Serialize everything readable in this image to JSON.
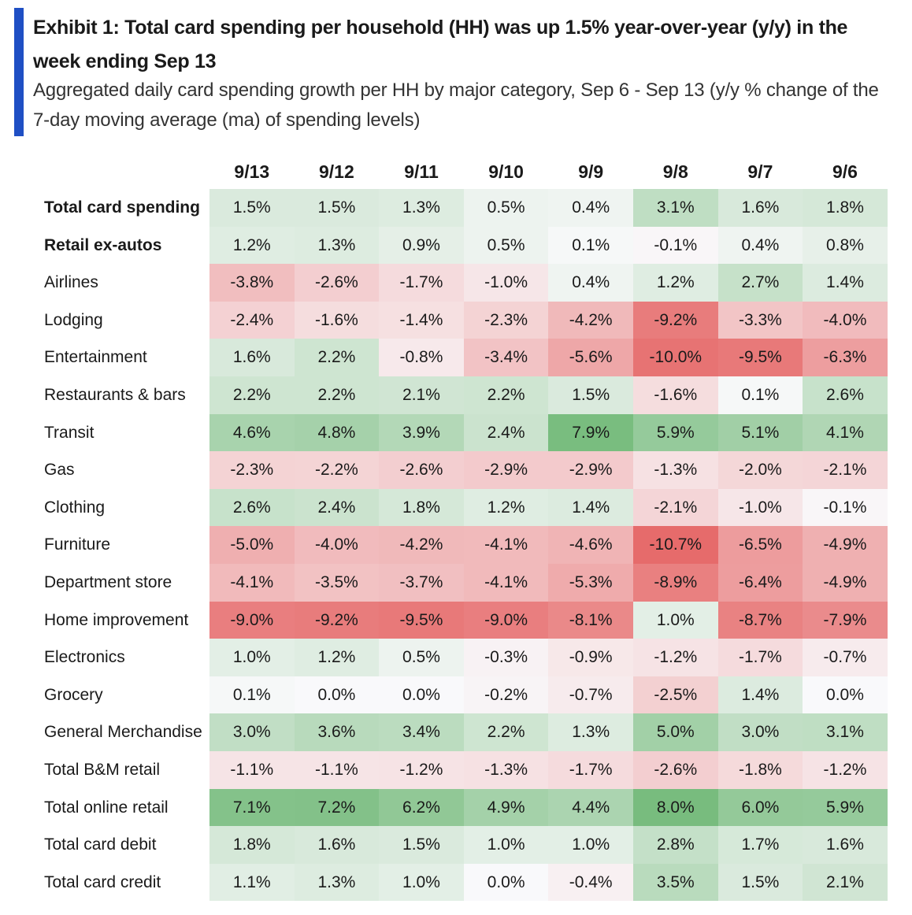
{
  "header": {
    "title": "Exhibit 1: Total card spending per household (HH) was up 1.5% year-over-year (y/y) in the week ending Sep 13",
    "subtitle": "Aggregated daily card spending growth per HH by major category, Sep 6 - Sep 13 (y/y % change of the 7-day moving average (ma) of spending levels)"
  },
  "colors": {
    "accent": "#1f4fc4",
    "positive": "#78bc7e",
    "negative": "#e66b6b",
    "neutral": "#f9f9fb"
  },
  "chart_data": {
    "type": "heatmap",
    "title": "Exhibit 1: Total card spending per household (HH) was up 1.5% year-over-year (y/y) in the week ending Sep 13",
    "columns": [
      "9/13",
      "9/12",
      "9/11",
      "9/10",
      "9/9",
      "9/8",
      "9/7",
      "9/6"
    ],
    "rows": [
      {
        "label": "Total card spending",
        "bold": true,
        "values": [
          1.5,
          1.5,
          1.3,
          0.5,
          0.4,
          3.1,
          1.6,
          1.8
        ]
      },
      {
        "label": "Retail ex-autos",
        "bold": true,
        "values": [
          1.2,
          1.3,
          0.9,
          0.5,
          0.1,
          -0.1,
          0.4,
          0.8
        ]
      },
      {
        "label": "Airlines",
        "values": [
          -3.8,
          -2.6,
          -1.7,
          -1.0,
          0.4,
          1.2,
          2.7,
          1.4
        ]
      },
      {
        "label": "Lodging",
        "values": [
          -2.4,
          -1.6,
          -1.4,
          -2.3,
          -4.2,
          -9.2,
          -3.3,
          -4.0
        ]
      },
      {
        "label": "Entertainment",
        "values": [
          1.6,
          2.2,
          -0.8,
          -3.4,
          -5.6,
          -10.0,
          -9.5,
          -6.3
        ]
      },
      {
        "label": "Restaurants & bars",
        "values": [
          2.2,
          2.2,
          2.1,
          2.2,
          1.5,
          -1.6,
          0.1,
          2.6
        ]
      },
      {
        "label": "Transit",
        "values": [
          4.6,
          4.8,
          3.9,
          2.4,
          7.9,
          5.9,
          5.1,
          4.1
        ]
      },
      {
        "label": "Gas",
        "values": [
          -2.3,
          -2.2,
          -2.6,
          -2.9,
          -2.9,
          -1.3,
          -2.0,
          -2.1
        ]
      },
      {
        "label": "Clothing",
        "values": [
          2.6,
          2.4,
          1.8,
          1.2,
          1.4,
          -2.1,
          -1.0,
          -0.1
        ]
      },
      {
        "label": "Furniture",
        "values": [
          -5.0,
          -4.0,
          -4.2,
          -4.1,
          -4.6,
          -10.7,
          -6.5,
          -4.9
        ]
      },
      {
        "label": "Department store",
        "values": [
          -4.1,
          -3.5,
          -3.7,
          -4.1,
          -5.3,
          -8.9,
          -6.4,
          -4.9
        ]
      },
      {
        "label": "Home improvement",
        "values": [
          -9.0,
          -9.2,
          -9.5,
          -9.0,
          -8.1,
          1.0,
          -8.7,
          -7.9
        ]
      },
      {
        "label": "Electronics",
        "values": [
          1.0,
          1.2,
          0.5,
          -0.3,
          -0.9,
          -1.2,
          -1.7,
          -0.7
        ]
      },
      {
        "label": "Grocery",
        "values": [
          0.1,
          0.0,
          0.0,
          -0.2,
          -0.7,
          -2.5,
          1.4,
          0.0
        ]
      },
      {
        "label": "General Merchandise",
        "values": [
          3.0,
          3.6,
          3.4,
          2.2,
          1.3,
          5.0,
          3.0,
          3.1
        ]
      },
      {
        "label": "Total B&M retail",
        "values": [
          -1.1,
          -1.1,
          -1.2,
          -1.3,
          -1.7,
          -2.6,
          -1.8,
          -1.2
        ]
      },
      {
        "label": "Total online retail",
        "values": [
          7.1,
          7.2,
          6.2,
          4.9,
          4.4,
          8.0,
          6.0,
          5.9
        ]
      },
      {
        "label": "Total card debit",
        "values": [
          1.8,
          1.6,
          1.5,
          1.0,
          1.0,
          2.8,
          1.7,
          1.6
        ]
      },
      {
        "label": "Total card credit",
        "values": [
          1.1,
          1.3,
          1.0,
          0.0,
          -0.4,
          3.5,
          1.5,
          2.1
        ]
      }
    ],
    "unit": "%",
    "value_format": "one decimal percent"
  }
}
